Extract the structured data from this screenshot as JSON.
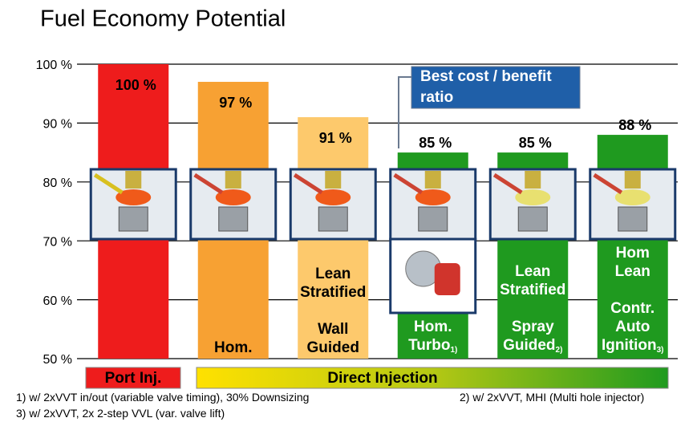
{
  "chart_data": {
    "type": "bar",
    "title": "Fuel Economy Potential",
    "categories": [
      null,
      "Hom.",
      "Lean\nStratified\n\nWall\nGuided",
      "Hom.\nTurbo",
      "Lean\nStratified\n\nSpray\nGuided",
      "Hom\nLean\n\nContr.\nAuto\nIgnition"
    ],
    "footnote_marks": [
      null,
      null,
      null,
      "1)",
      "2)",
      "3)"
    ],
    "values": [
      100,
      97,
      91,
      85,
      85,
      88
    ],
    "value_labels": [
      "100 %",
      "97 %",
      "91 %",
      "85 %",
      "85 %",
      "88 %"
    ],
    "colors": [
      "#ee1c1c",
      "#f7a133",
      "#fdc96c",
      "#1f9a1f",
      "#1f9a1f",
      "#1f9a1f"
    ],
    "ylim": [
      50,
      100
    ],
    "yticks": [
      {
        "value": 50,
        "label": "50 %"
      },
      {
        "value": 60,
        "label": "60 %"
      },
      {
        "value": 70,
        "label": "70 %"
      },
      {
        "value": 80,
        "label": "80 %"
      },
      {
        "value": 90,
        "label": "90 %"
      },
      {
        "value": 100,
        "label": "100 %"
      }
    ],
    "grid": true,
    "callout": "Best cost / benefit ratio",
    "groups": [
      "Port Inj.",
      "Direct Injection"
    ],
    "footnotes": [
      "1) w/ 2xVVT in/out (variable valve timing), 30% Downsizing",
      "2) w/ 2xVVT, MHI (Multi hole injector)",
      "3) w/ 2xVVT, 2x 2-step VVL (var. valve lift)"
    ]
  }
}
